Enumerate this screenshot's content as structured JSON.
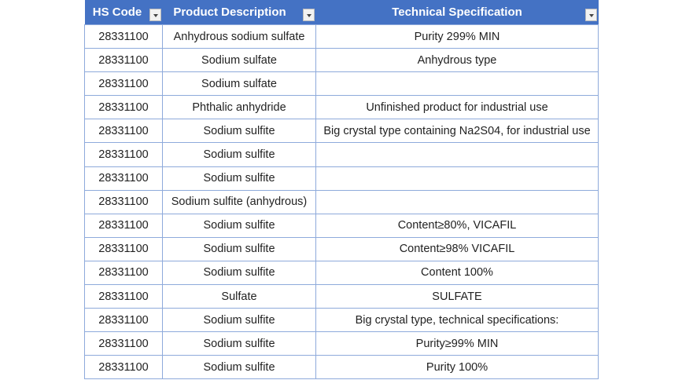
{
  "headers": [
    {
      "label": "HS Code"
    },
    {
      "label": "Product Description"
    },
    {
      "label": "Technical Specification"
    }
  ],
  "rows": [
    [
      "28331100",
      "Anhydrous sodium sulfate",
      "Purity 299% MIN"
    ],
    [
      "28331100",
      "Sodium sulfate",
      "Anhydrous type"
    ],
    [
      "28331100",
      "Sodium sulfate",
      ""
    ],
    [
      "28331100",
      "Phthalic anhydride",
      "Unfinished product for industrial use"
    ],
    [
      "28331100",
      "Sodium sulfite",
      "Big crystal type containing Na2S04, for industrial use"
    ],
    [
      "28331100",
      "Sodium sulfite",
      ""
    ],
    [
      "28331100",
      "Sodium sulfite",
      ""
    ],
    [
      "28331100",
      "Sodium sulfite (anhydrous)",
      ""
    ],
    [
      "28331100",
      "Sodium sulfite",
      "Content≥80%, VICAFIL"
    ],
    [
      "28331100",
      "Sodium sulfite",
      "Content≥98% VICAFIL"
    ],
    [
      "28331100",
      "Sodium sulfite",
      "Content 100%"
    ],
    [
      "28331100",
      "Sulfate",
      "SULFATE"
    ],
    [
      "28331100",
      "Sodium sulfite",
      "Big crystal type, technical specifications:"
    ],
    [
      "28331100",
      "Sodium sulfite",
      "Purity≥99% MIN"
    ],
    [
      "28331100",
      "Sodium sulfite",
      "Purity 100%"
    ]
  ],
  "colors": {
    "header_bg": "#4472c4",
    "header_text": "#ffffff",
    "grid": "#8eaadb"
  }
}
